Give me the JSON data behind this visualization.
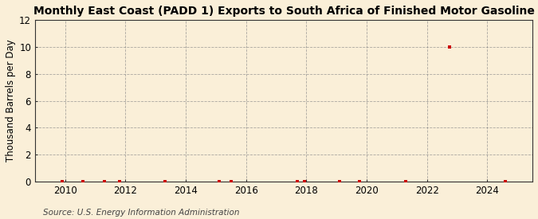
{
  "title": "Monthly East Coast (PADD 1) Exports to South Africa of Finished Motor Gasoline",
  "ylabel": "Thousand Barrels per Day",
  "source": "Source: U.S. Energy Information Administration",
  "background_color": "#faefd8",
  "plot_bg_color": "#faefd8",
  "grid_color": "#888888",
  "spine_color": "#333333",
  "xlim": [
    2009.0,
    2025.5
  ],
  "ylim": [
    0,
    12
  ],
  "yticks": [
    0,
    2,
    4,
    6,
    8,
    10,
    12
  ],
  "xticks": [
    2010,
    2012,
    2014,
    2016,
    2018,
    2020,
    2022,
    2024
  ],
  "data_points": [
    [
      2009.9,
      0.0
    ],
    [
      2010.6,
      0.0
    ],
    [
      2011.3,
      0.0
    ],
    [
      2011.8,
      0.0
    ],
    [
      2013.3,
      0.0
    ],
    [
      2015.1,
      0.0
    ],
    [
      2015.5,
      0.0
    ],
    [
      2017.7,
      0.0
    ],
    [
      2017.95,
      0.0
    ],
    [
      2019.1,
      0.0
    ],
    [
      2019.75,
      0.0
    ],
    [
      2021.3,
      0.0
    ],
    [
      2022.75,
      10.0
    ],
    [
      2024.6,
      0.0
    ]
  ],
  "dot_color": "#cc0000",
  "dot_size": 8,
  "title_fontsize": 10,
  "ylabel_fontsize": 8.5,
  "tick_fontsize": 8.5,
  "source_fontsize": 7.5
}
